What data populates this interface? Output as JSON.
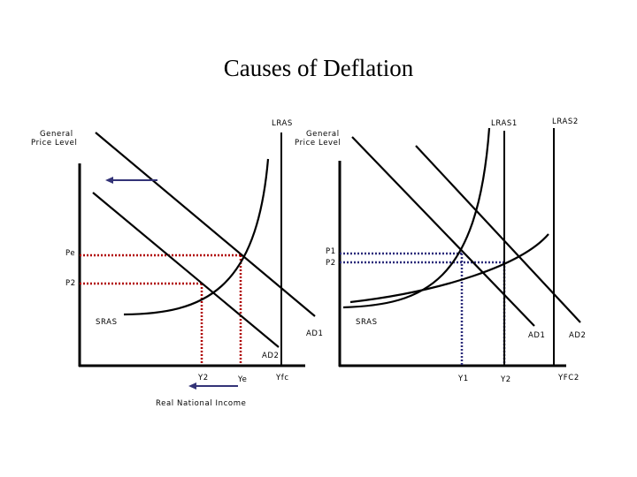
{
  "title": "Causes of Deflation",
  "colors": {
    "axis": "#000000",
    "red_guides": "#b00000",
    "blue_guides": "#2c2c7a",
    "arrow": "#333377"
  },
  "left": {
    "y_axis_label_line1": "General",
    "y_axis_label_line2": "Price Level",
    "x_axis_label": "Real National Income",
    "lras_label": "LRAS",
    "sras_label": "SRAS",
    "ad1_label": "AD1",
    "ad2_label": "AD2",
    "price_labels": [
      "Pe",
      "P2"
    ],
    "income_labels": [
      "Y2",
      "Ye",
      "Yfc"
    ],
    "arrow_icon": "left-arrow-icon"
  },
  "right": {
    "y_axis_label_line1": "General",
    "y_axis_label_line2": "Price Level",
    "lras1_label": "LRAS1",
    "lras2_label": "LRAS2",
    "sras_label": "SRAS",
    "ad1_label": "AD1",
    "ad2_label": "AD2",
    "price_labels": [
      "P1",
      "P2"
    ],
    "income_labels": [
      "Y1",
      "Y2",
      "YFC2"
    ]
  }
}
